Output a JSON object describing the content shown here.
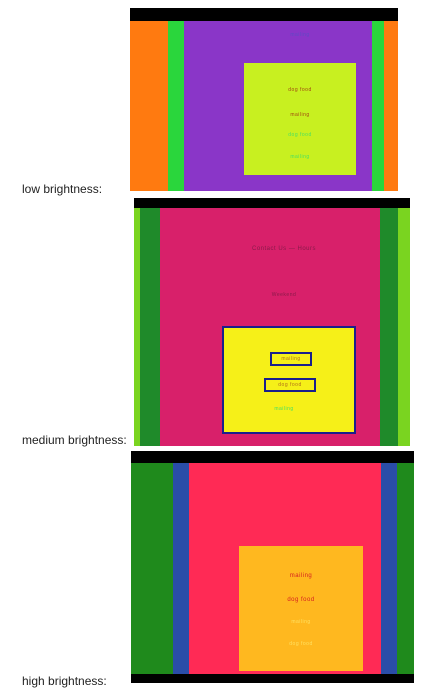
{
  "rows": [
    {
      "label": "low brightness:",
      "sample_texts": [
        "mailing",
        "dog food",
        "mailing",
        "dog food",
        "mailing"
      ],
      "colors": {
        "bg": "#ff7a10",
        "band": "#2ad63c",
        "panel": "#8a36c8",
        "card": "#c8f020",
        "text_dark": "#a04810",
        "text_light": "#4ae060"
      }
    },
    {
      "label": "medium brightness:",
      "sample_texts": [
        "Contact Us — Hours",
        "Weekend",
        "mailing",
        "dog food",
        "mailing"
      ],
      "colors": {
        "bg": "#7ad420",
        "band": "#1f8a2a",
        "panel": "#d8206a",
        "card": "#f6f018",
        "outline": "#1a1f8c"
      }
    },
    {
      "label": "high brightness:",
      "sample_texts": [
        "mailing",
        "dog food",
        "mailing",
        "dog food"
      ],
      "colors": {
        "bg": "#1f8a1c",
        "band": "#2a4da8",
        "panel": "#ff2a55",
        "card": "#ffb81f",
        "text_dark": "#d62020"
      }
    }
  ]
}
